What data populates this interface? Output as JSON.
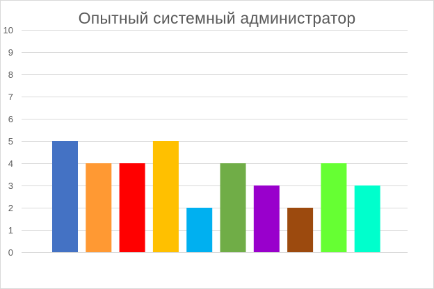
{
  "chart_data": {
    "type": "bar",
    "title": "Опытный системный администратор",
    "xlabel": "",
    "ylabel": "",
    "ylim": [
      0,
      10
    ],
    "yticks": [
      0,
      1,
      2,
      3,
      4,
      5,
      6,
      7,
      8,
      9,
      10
    ],
    "grid": true,
    "legend": "none",
    "values": [
      5,
      4,
      4,
      5,
      2,
      4,
      3,
      2,
      4,
      3
    ],
    "colors": [
      "#4472c4",
      "#ff9933",
      "#ff0000",
      "#ffc000",
      "#00b0f0",
      "#70ad47",
      "#9900cc",
      "#9c4a0e",
      "#66ff33",
      "#00ffcc"
    ]
  }
}
